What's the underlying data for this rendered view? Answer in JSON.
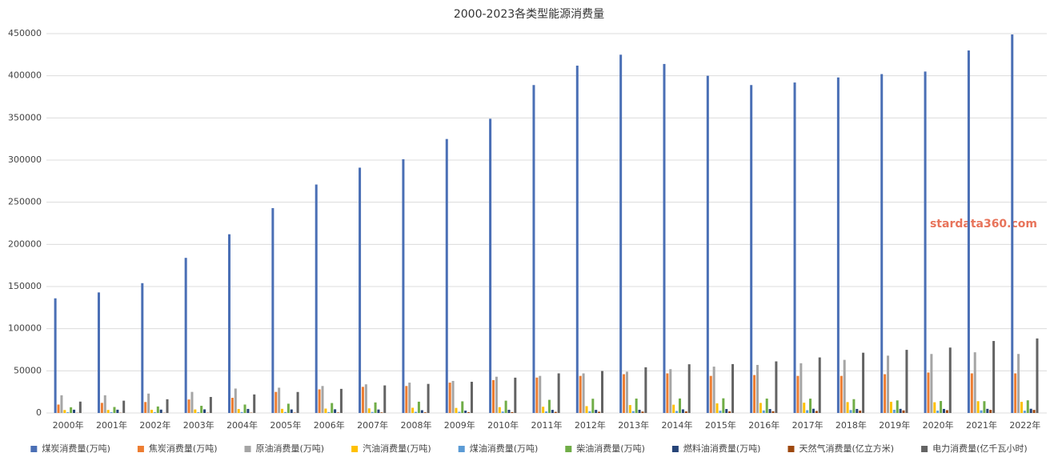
{
  "chart_data": {
    "type": "bar",
    "title": "2000-2023各类型能源消费量",
    "watermark": "stardata360.com",
    "categories": [
      "2000年",
      "2001年",
      "2002年",
      "2003年",
      "2004年",
      "2005年",
      "2006年",
      "2007年",
      "2008年",
      "2009年",
      "2010年",
      "2011年",
      "2012年",
      "2013年",
      "2014年",
      "2015年",
      "2016年",
      "2017年",
      "2018年",
      "2019年",
      "2020年",
      "2021年",
      "2022年"
    ],
    "ylim": [
      0,
      450000
    ],
    "yticks": [
      0,
      50000,
      100000,
      150000,
      200000,
      250000,
      300000,
      350000,
      400000,
      450000
    ],
    "grid": true,
    "legend": "bottom",
    "series": [
      {
        "name": "煤炭消费量(万吨)",
        "color": "#4a6fb5",
        "values": [
          136000,
          143000,
          154000,
          184000,
          212000,
          243000,
          271000,
          291000,
          301000,
          325000,
          349000,
          389000,
          412000,
          425000,
          414000,
          400000,
          389000,
          392000,
          398000,
          402000,
          405000,
          430000,
          449000
        ]
      },
      {
        "name": "焦炭消费量(万吨)",
        "color": "#ed7d31",
        "values": [
          10000,
          12000,
          13000,
          16000,
          18000,
          25000,
          28000,
          31000,
          32000,
          36000,
          39000,
          42000,
          44000,
          46000,
          47000,
          44000,
          45000,
          44000,
          44000,
          46000,
          48000,
          47000,
          47000
        ]
      },
      {
        "name": "原油消费量(万吨)",
        "color": "#a5a5a5",
        "values": [
          21000,
          21000,
          23000,
          25000,
          29000,
          30000,
          32000,
          34000,
          36000,
          38000,
          43000,
          44000,
          47000,
          49000,
          52000,
          55000,
          57000,
          59000,
          63000,
          68000,
          70000,
          72000,
          70000
        ]
      },
      {
        "name": "汽油消费量(万吨)",
        "color": "#ffc000",
        "values": [
          3500,
          3600,
          3800,
          4200,
          4700,
          4900,
          5200,
          5500,
          6200,
          6000,
          6900,
          7400,
          8100,
          9400,
          9800,
          11400,
          11900,
          12200,
          12900,
          13300,
          12700,
          14000,
          13200
        ]
      },
      {
        "name": "煤油消费量(万吨)",
        "color": "#5b9bd5",
        "values": [
          900,
          900,
          900,
          900,
          1100,
          1100,
          1100,
          1200,
          1300,
          1400,
          1700,
          1800,
          2000,
          2200,
          2400,
          2700,
          3000,
          3300,
          3500,
          3800,
          2800,
          3100,
          2700
        ]
      },
      {
        "name": "柴油消费量(万吨)",
        "color": "#70ad47",
        "values": [
          6800,
          7100,
          7700,
          8500,
          10000,
          11000,
          11800,
          12500,
          13400,
          13800,
          14600,
          15600,
          16900,
          17100,
          17200,
          17400,
          17100,
          17000,
          16400,
          14900,
          14200,
          14000,
          15000
        ]
      },
      {
        "name": "燃料油消费量(万吨)",
        "color": "#264478",
        "values": [
          3900,
          3900,
          4000,
          4300,
          4800,
          4200,
          4400,
          4100,
          3300,
          2800,
          3800,
          3700,
          3700,
          3800,
          4300,
          4700,
          4700,
          5000,
          4800,
          4900,
          4800,
          4900,
          5000
        ]
      },
      {
        "name": "天然气消费量(亿立方米)",
        "color": "#9e480e",
        "values": [
          245,
          274,
          292,
          339,
          397,
          467,
          573,
          705,
          813,
          895,
          1080,
          1341,
          1497,
          1705,
          1871,
          1932,
          2078,
          2393,
          2817,
          3060,
          3340,
          3690,
          3646
        ]
      },
      {
        "name": "电力消费量(亿千瓦小时)",
        "color": "#636363",
        "values": [
          13500,
          14600,
          16300,
          19000,
          22000,
          24900,
          28600,
          32700,
          34500,
          37000,
          41900,
          47000,
          49800,
          54200,
          57800,
          58000,
          61200,
          65900,
          71500,
          74900,
          77600,
          85400,
          88400
        ]
      }
    ]
  }
}
